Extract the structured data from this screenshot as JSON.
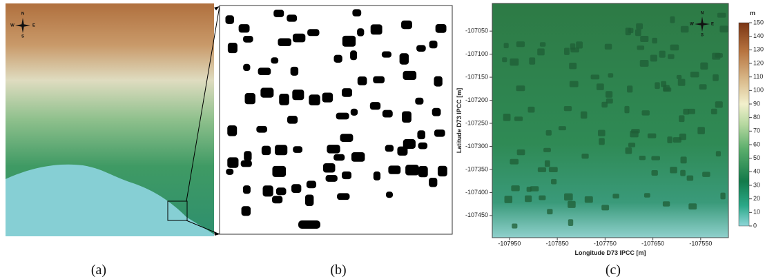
{
  "panel_a": {
    "label": "(a)",
    "compass": {
      "n": "N",
      "s": "S",
      "w": "W",
      "e": "E"
    }
  },
  "panel_b": {
    "label": "(b)"
  },
  "panel_c": {
    "label": "(c)",
    "compass": {
      "n": "N",
      "s": "S",
      "w": "W",
      "e": "E"
    },
    "x_label": "Longitude D73 IPCC [m]",
    "y_label": "Latitude D73 IPCC [m]",
    "xlim": [
      -107986,
      -107492
    ],
    "ylim": [
      -107498,
      -106990
    ],
    "xticks": [
      -107950,
      -107850,
      -107750,
      -107650,
      -107550
    ],
    "yticks": [
      -107050,
      -107100,
      -107150,
      -107200,
      -107250,
      -107300,
      -107350,
      -107400,
      -107450
    ],
    "colorbar": {
      "unit": "m",
      "lim": [
        0,
        150
      ],
      "ticks": [
        0,
        10,
        20,
        30,
        40,
        50,
        60,
        70,
        80,
        90,
        100,
        110,
        120,
        130,
        140,
        150
      ]
    }
  }
}
